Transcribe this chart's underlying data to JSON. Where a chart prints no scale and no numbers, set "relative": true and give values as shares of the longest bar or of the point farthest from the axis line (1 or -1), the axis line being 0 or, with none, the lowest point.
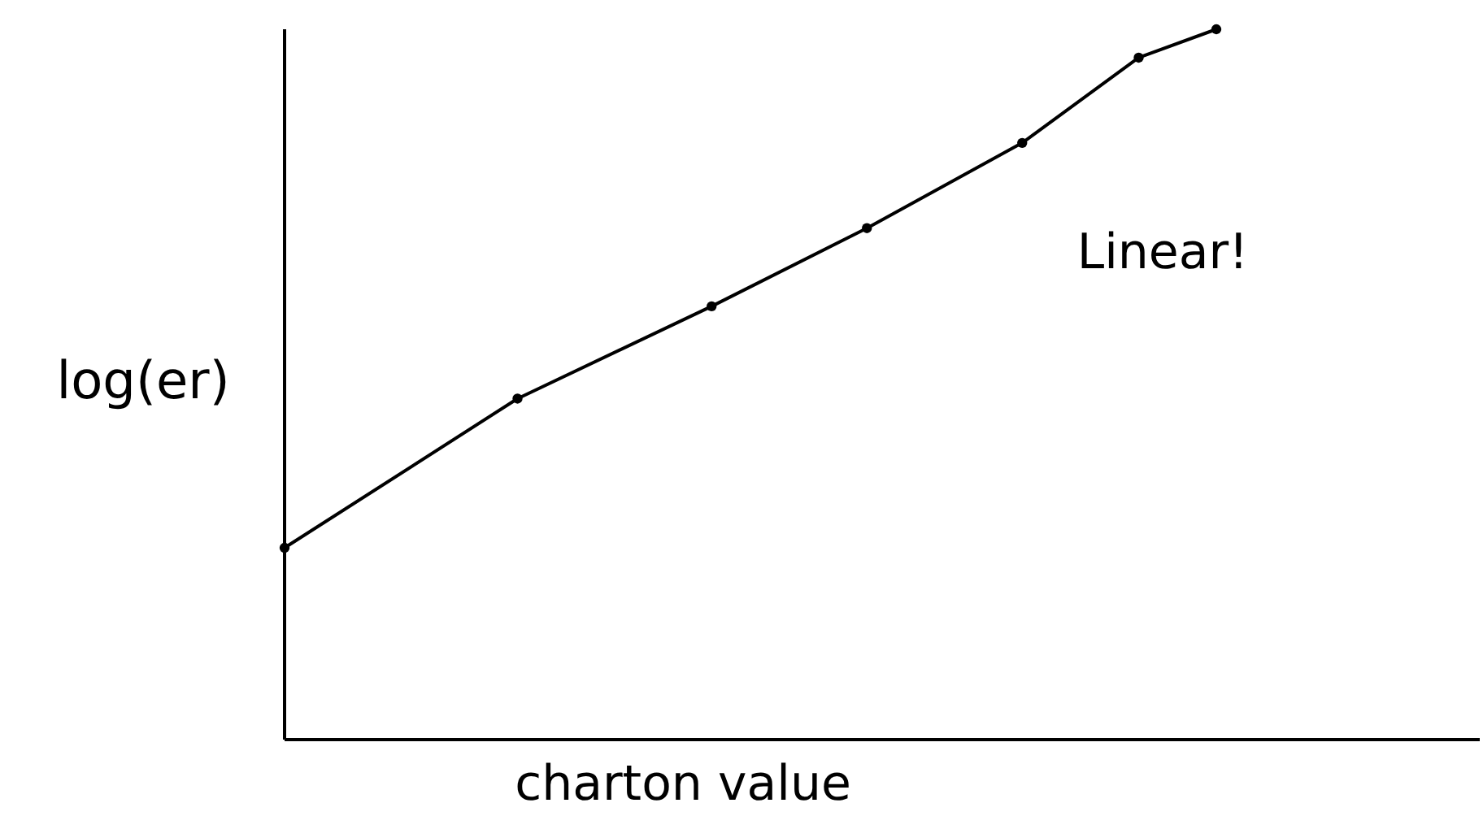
{
  "chart_data": {
    "type": "line",
    "relative": true,
    "xlabel": "charton value",
    "ylabel": "log(er)",
    "annotations": [
      "Linear!"
    ],
    "categories": [
      null,
      null,
      null,
      null,
      null,
      null,
      null,
      null,
      null,
      null,
      null,
      null,
      null,
      null,
      null,
      null,
      null,
      null,
      null,
      null,
      null,
      null,
      null,
      null,
      null
    ],
    "series": [
      {
        "color": "#000000",
        "marker": "circle",
        "values": [
          0.27,
          null,
          null,
          null,
          null,
          null,
          0.48,
          null,
          null,
          null,
          null,
          0.61,
          null,
          null,
          null,
          0.72,
          null,
          null,
          null,
          0.84,
          null,
          null,
          0.96,
          null,
          1
        ]
      }
    ]
  }
}
